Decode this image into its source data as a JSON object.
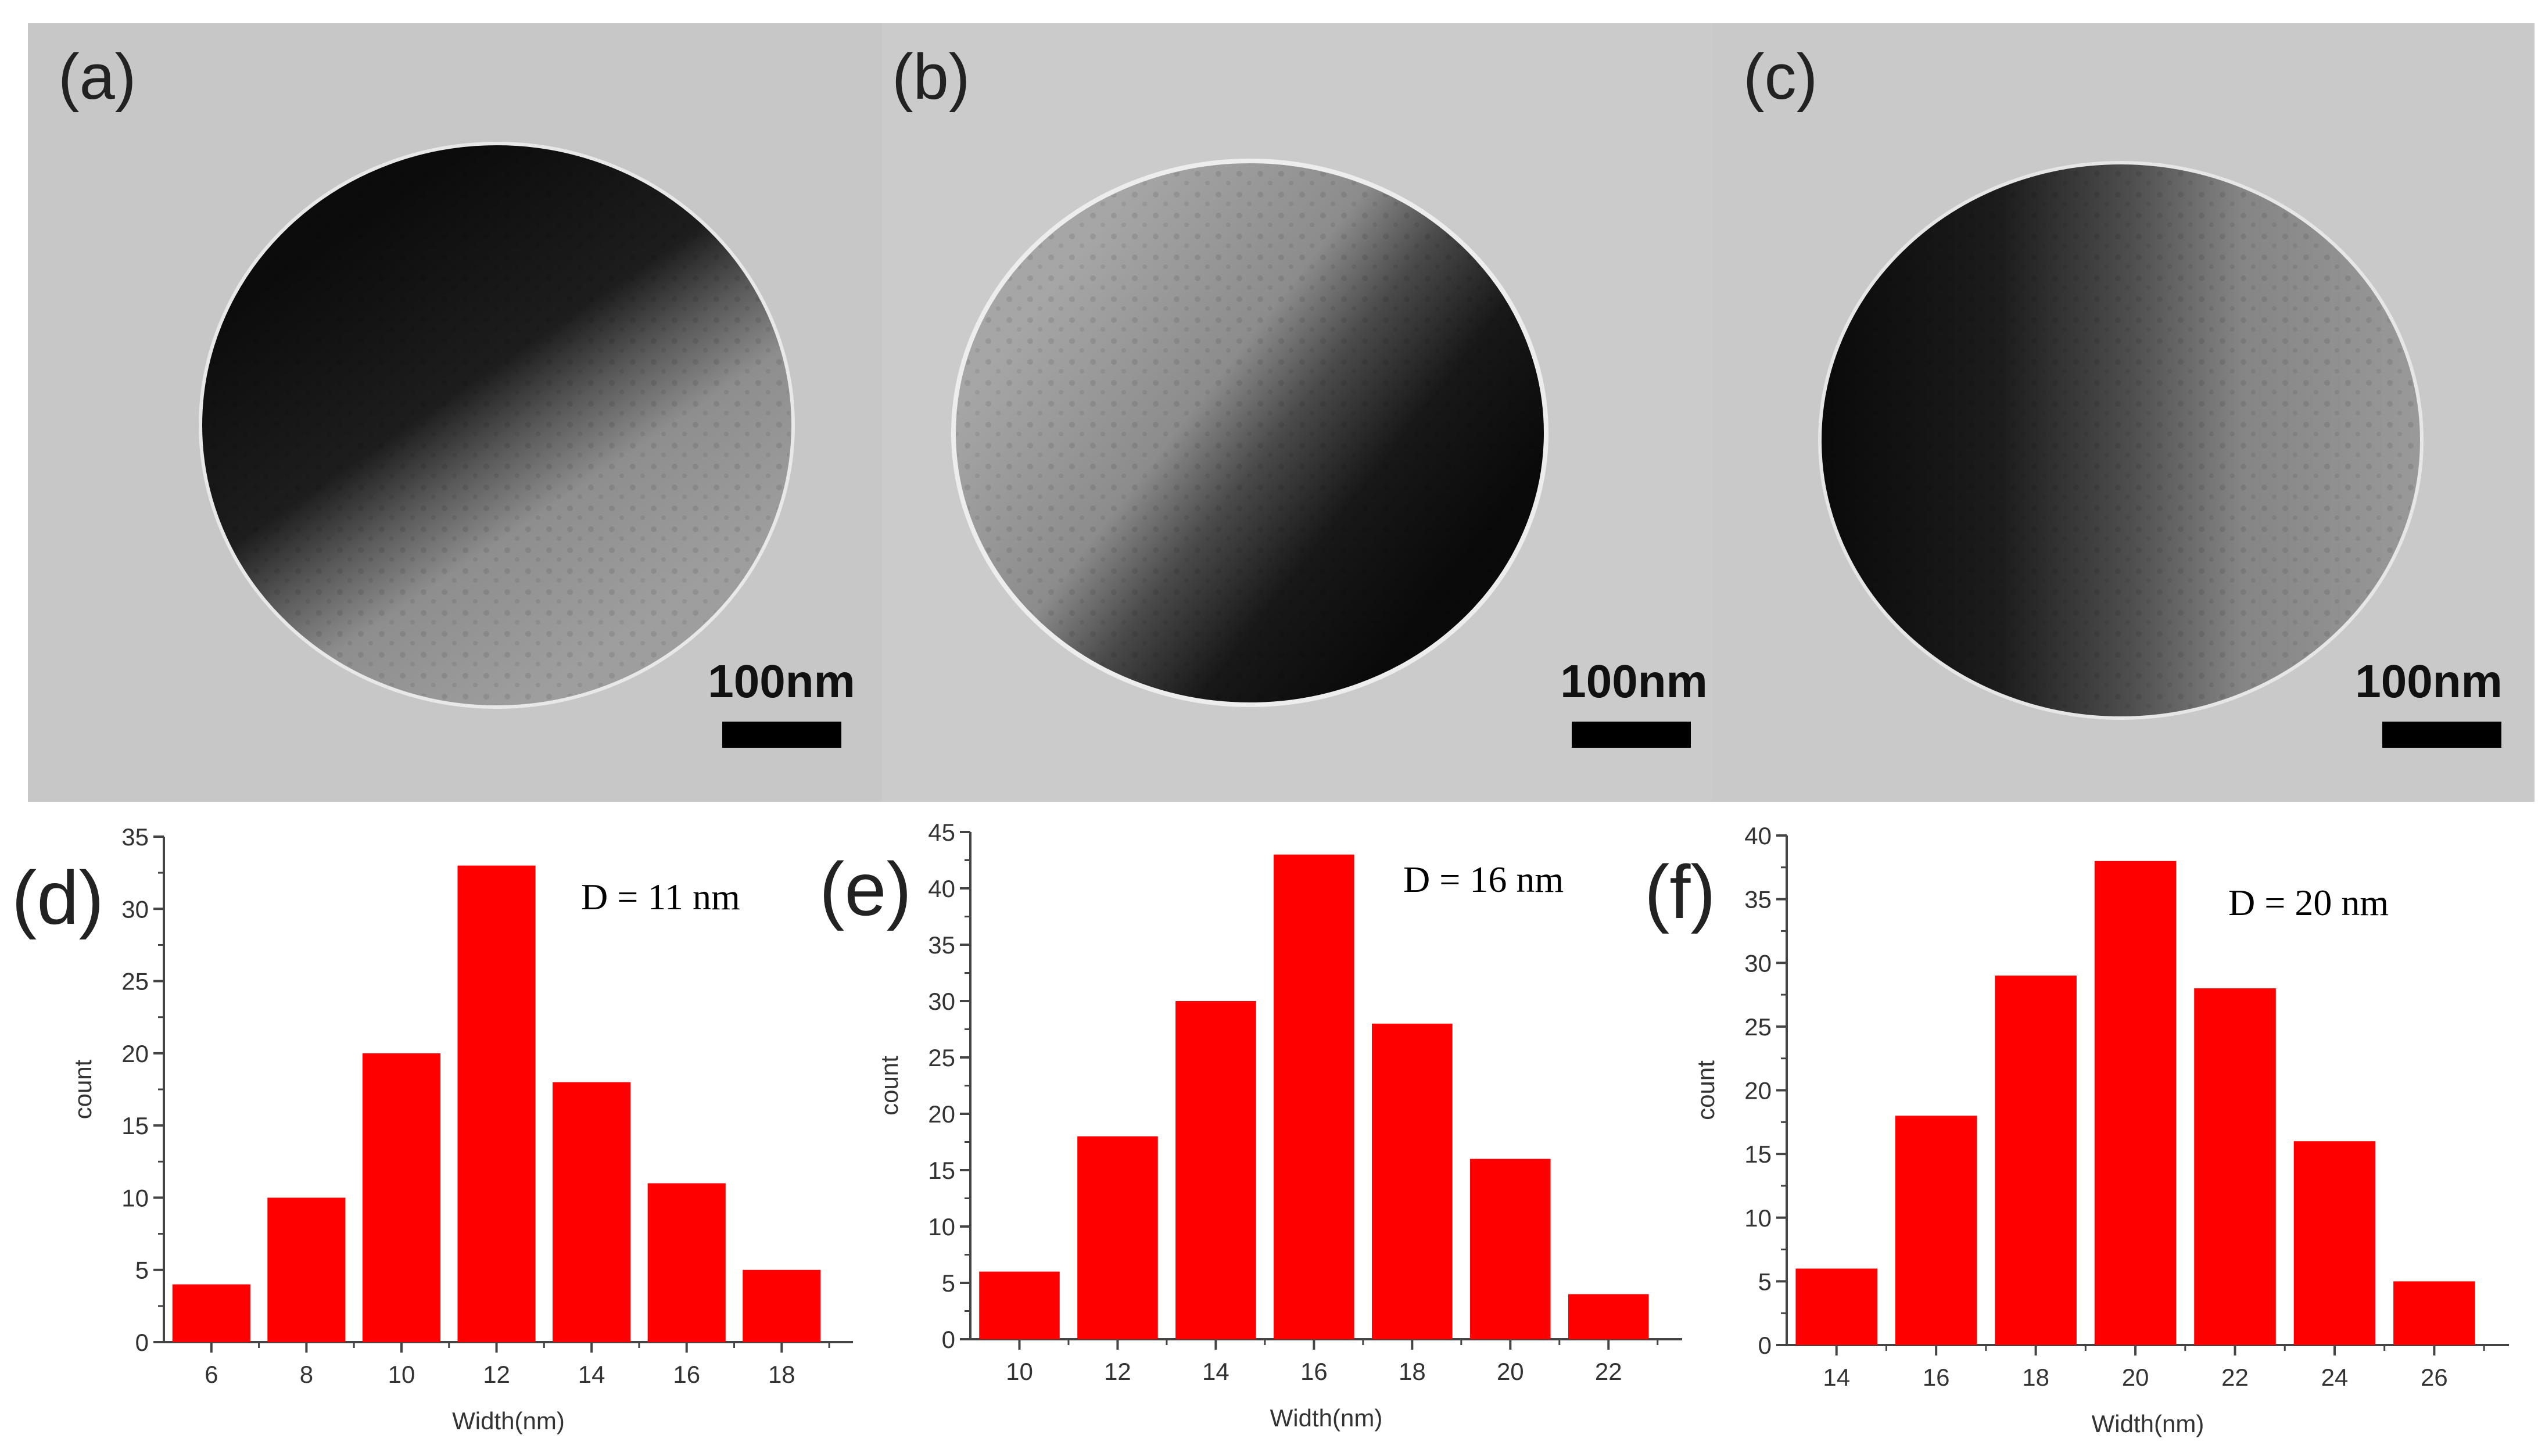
{
  "tem_panels": [
    {
      "label": "(a)",
      "scale_bar": "100nm"
    },
    {
      "label": "(b)",
      "scale_bar": "100nm"
    },
    {
      "label": "(c)",
      "scale_bar": "100nm"
    }
  ],
  "chart_data": [
    {
      "type": "bar",
      "panel_label": "(d)",
      "annotation": "D = 11 nm",
      "categories": [
        6,
        8,
        10,
        12,
        14,
        16,
        18
      ],
      "values": [
        4,
        10,
        20,
        33,
        18,
        11,
        5
      ],
      "xlabel": "Width(nm)",
      "ylabel": "count",
      "ylim": [
        0,
        35
      ],
      "yticks": [
        0,
        5,
        10,
        15,
        20,
        25,
        30,
        35
      ],
      "xlim": [
        5,
        19.5
      ],
      "bar_color": "#ff0000"
    },
    {
      "type": "bar",
      "panel_label": "(e)",
      "annotation": "D = 16 nm",
      "categories": [
        10,
        12,
        14,
        16,
        18,
        20,
        22
      ],
      "values": [
        6,
        18,
        30,
        43,
        28,
        16,
        4
      ],
      "xlabel": "Width(nm)",
      "ylabel": "count",
      "ylim": [
        0,
        45
      ],
      "yticks": [
        0,
        5,
        10,
        15,
        20,
        25,
        30,
        35,
        40,
        45
      ],
      "xlim": [
        9,
        23.5
      ],
      "bar_color": "#ff0000"
    },
    {
      "type": "bar",
      "panel_label": "(f)",
      "annotation": "D = 20 nm",
      "categories": [
        14,
        16,
        18,
        20,
        22,
        24,
        26
      ],
      "values": [
        6,
        18,
        29,
        38,
        28,
        16,
        5
      ],
      "xlabel": "Width(nm)",
      "ylabel": "count",
      "ylim": [
        0,
        40
      ],
      "yticks": [
        0,
        5,
        10,
        15,
        20,
        25,
        30,
        35,
        40
      ],
      "xlim": [
        13,
        27.5
      ],
      "bar_color": "#ff0000"
    }
  ]
}
